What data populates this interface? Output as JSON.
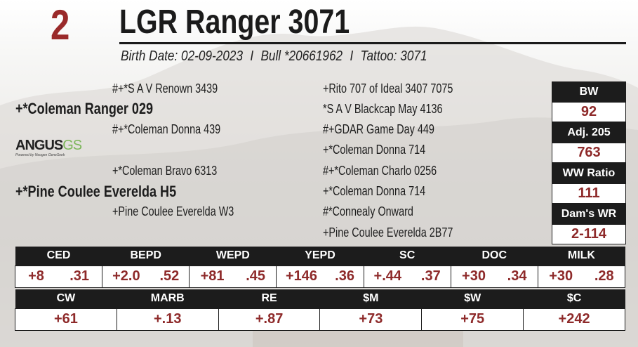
{
  "lot_number": "2",
  "animal_name": "LGR Ranger 3071",
  "details": {
    "birth_date": "Birth Date: 02-09-2023",
    "separator": "I",
    "registration": "Bull *20661962",
    "tattoo": "Tattoo: 3071"
  },
  "pedigree": {
    "sire": "+*Coleman Ranger 029",
    "sire_sire": "#+*S A V Renown 3439",
    "sire_dam": "#+*Coleman Donna  439",
    "dam": "+*Pine Coulee Everelda H5",
    "dam_sire": "+*Coleman Bravo 6313",
    "dam_dam": "+Pine Coulee Everelda W3",
    "outer": [
      "+Rito 707 of Ideal 3407 7075",
      "*S A V Blackcap May 4136",
      "#+GDAR Game Day 449",
      "+*Coleman Donna  714",
      "#+*Coleman Charlo 0256",
      "+*Coleman Donna  714",
      "#*Connealy Onward",
      "+Pine Coulee Everelda 2B77"
    ]
  },
  "logo": {
    "main": "ANGUS",
    "suffix": "GS",
    "tagline": "Powered by Neogen GeneSeek"
  },
  "performance": [
    {
      "label": "BW",
      "value": "92"
    },
    {
      "label": "Adj. 205",
      "value": "763"
    },
    {
      "label": "WW Ratio",
      "value": "111"
    },
    {
      "label": "Dam's WR",
      "value": "2-114"
    }
  ],
  "epds_row1": [
    {
      "label": "CED",
      "epd": "+8",
      "acc": ".31"
    },
    {
      "label": "BEPD",
      "epd": "+2.0",
      "acc": ".52"
    },
    {
      "label": "WEPD",
      "epd": "+81",
      "acc": ".45"
    },
    {
      "label": "YEPD",
      "epd": "+146",
      "acc": ".36"
    },
    {
      "label": "SC",
      "epd": "+.44",
      "acc": ".37"
    },
    {
      "label": "DOC",
      "epd": "+30",
      "acc": ".34"
    },
    {
      "label": "MILK",
      "epd": "+30",
      "acc": ".28"
    }
  ],
  "epds_row2": [
    {
      "label": "CW",
      "value": "+61"
    },
    {
      "label": "MARB",
      "value": "+.13"
    },
    {
      "label": "RE",
      "value": "+.87"
    },
    {
      "label": "$M",
      "value": "+73"
    },
    {
      "label": "$W",
      "value": "+75"
    },
    {
      "label": "$C",
      "value": "+242"
    }
  ],
  "colors": {
    "accent_red": "#9a2a2a",
    "value_red": "#8e2a2a",
    "header_black": "#1c1c1c",
    "logo_green": "#7cb65a"
  }
}
